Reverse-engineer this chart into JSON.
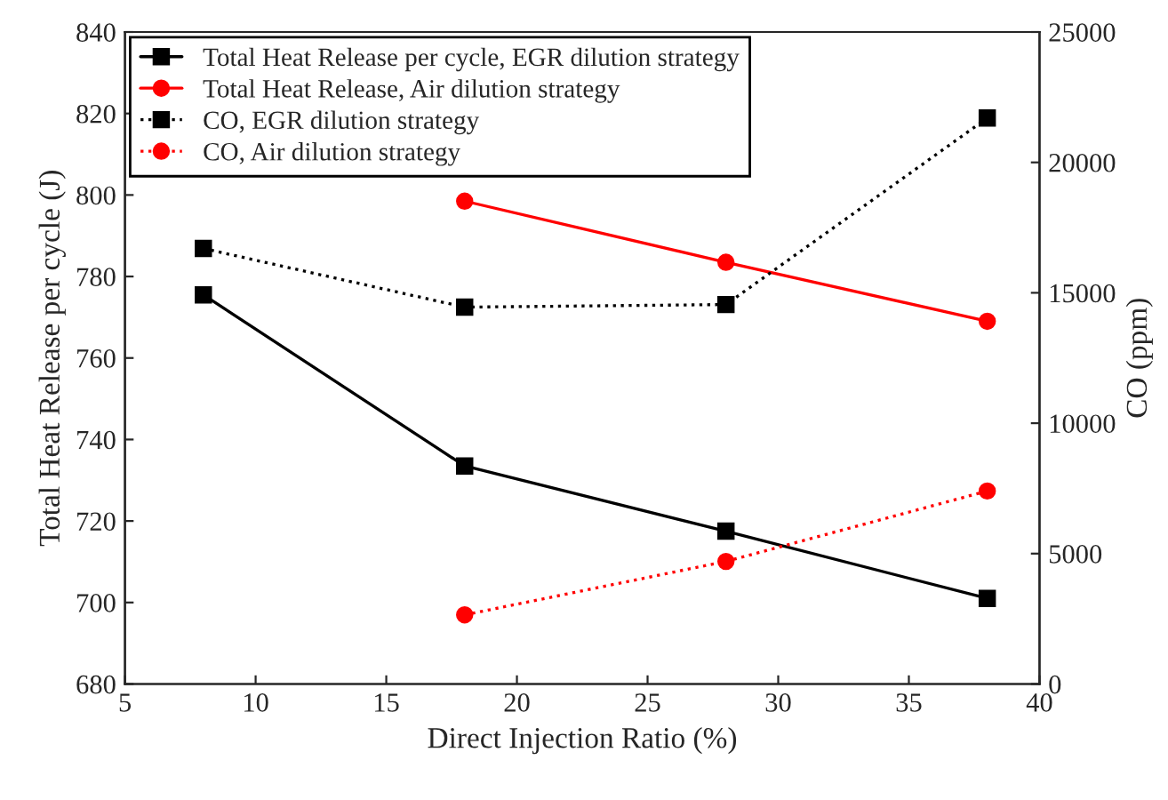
{
  "chart_data": {
    "type": "line",
    "xlabel": "Direct Injection Ratio (%)",
    "ylabel": "Total Heat Release per cycle (J)",
    "y2label": "CO (ppm)",
    "xlim": [
      5,
      40
    ],
    "xticks": [
      5,
      10,
      15,
      20,
      25,
      30,
      35,
      40
    ],
    "ylim": [
      680,
      840
    ],
    "yticks": [
      680,
      700,
      720,
      740,
      760,
      780,
      800,
      820,
      840
    ],
    "y2lim": [
      0,
      25000
    ],
    "y2ticks": [
      0,
      5000,
      10000,
      15000,
      20000,
      25000
    ],
    "legend": "top left",
    "grid": false,
    "series": [
      {
        "name": "Total Heat Release per cycle, EGR dilution strategy",
        "color": "#000000",
        "marker": "square",
        "line_style": "solid",
        "x": [
          8,
          18,
          28,
          38
        ],
        "values": [
          775.5,
          733.5,
          717.5,
          701
        ]
      },
      {
        "name": "Total Heat Release, Air dilution strategy",
        "color": "#ff0000",
        "marker": "circle",
        "line_style": "solid",
        "x": [
          18,
          28,
          38
        ],
        "values": [
          798.5,
          783.5,
          769
        ]
      },
      {
        "name": "CO, EGR dilution strategy",
        "color": "#000000",
        "marker": "square",
        "line_style": "dotted",
        "axis": "y2",
        "x": [
          8,
          18,
          28,
          38
        ],
        "values": [
          16700,
          14450,
          14550,
          21700
        ]
      },
      {
        "name": "CO, Air dilution strategy",
        "color": "#ff0000",
        "marker": "circle",
        "line_style": "dotted",
        "axis": "y2",
        "x": [
          18,
          28,
          38
        ],
        "values": [
          2650,
          4700,
          7400
        ]
      }
    ]
  }
}
